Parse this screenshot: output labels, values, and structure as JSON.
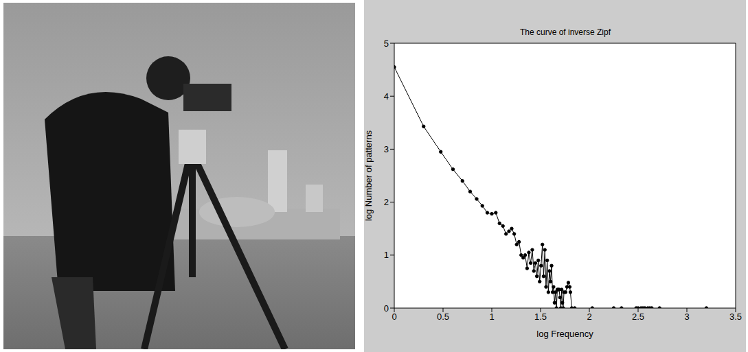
{
  "chart_data": {
    "type": "line",
    "title": "The curve of inverse Zipf",
    "x_label": "log Frequency",
    "y_label": "log Number of patterns",
    "xlim": [
      0,
      3.5
    ],
    "xticks": [
      0,
      0.5,
      1,
      1.5,
      2,
      2.5,
      3,
      3.5
    ],
    "ylim": [
      0,
      5
    ],
    "yticks": [
      0,
      1,
      2,
      3,
      4,
      5
    ],
    "grid": false,
    "color": "#000000",
    "marker": "circle",
    "line_style": "solid",
    "x": [
      0,
      0.301,
      0.477,
      0.602,
      0.699,
      0.778,
      0.845,
      0.903,
      0.954,
      1.0,
      1.041,
      1.079,
      1.114,
      1.146,
      1.176,
      1.204,
      1.23,
      1.255,
      1.279,
      1.301,
      1.322,
      1.342,
      1.362,
      1.38,
      1.398,
      1.415,
      1.431,
      1.447,
      1.462,
      1.477,
      1.491,
      1.505,
      1.519,
      1.531,
      1.544,
      1.556,
      1.568,
      1.58,
      1.591,
      1.602,
      1.613,
      1.623,
      1.633,
      1.643,
      1.653,
      1.663,
      1.672,
      1.681,
      1.69,
      1.699,
      1.708,
      1.716,
      1.724,
      1.732,
      1.74,
      1.756,
      1.771,
      1.785,
      1.799,
      1.806,
      1.82,
      1.85,
      1.95,
      2.03,
      2.14,
      2.25,
      2.29,
      2.33,
      2.4,
      2.48,
      2.49,
      2.5,
      2.515,
      2.53,
      2.54,
      2.55,
      2.56,
      2.57,
      2.585,
      2.6,
      2.61,
      2.62,
      2.63,
      2.64,
      2.68,
      2.72,
      2.9,
      3.2
    ],
    "values": [
      4.55,
      3.43,
      2.95,
      2.62,
      2.4,
      2.2,
      2.06,
      1.93,
      1.8,
      1.78,
      1.8,
      1.6,
      1.55,
      1.4,
      1.45,
      1.5,
      1.4,
      1.2,
      1.25,
      1.0,
      0.95,
      1.0,
      0.75,
      1.05,
      0.85,
      1.1,
      0.7,
      0.85,
      0.6,
      0.9,
      0.5,
      0.8,
      1.2,
      0.6,
      1.1,
      0.4,
      0.9,
      0.3,
      0.7,
      0.5,
      0.8,
      0.3,
      0.4,
      0.1,
      0.3,
      0,
      0.35,
      0.35,
      0.35,
      0.2,
      0,
      0.35,
      0.1,
      0,
      0.3,
      0.3,
      0.4,
      0.48,
      0.4,
      0.3,
      0,
      0,
      null,
      0,
      null,
      0,
      null,
      0,
      null,
      0,
      null,
      0,
      null,
      0,
      null,
      0,
      null,
      0,
      null,
      0,
      null,
      0,
      null,
      0,
      null,
      0,
      null,
      0
    ]
  }
}
